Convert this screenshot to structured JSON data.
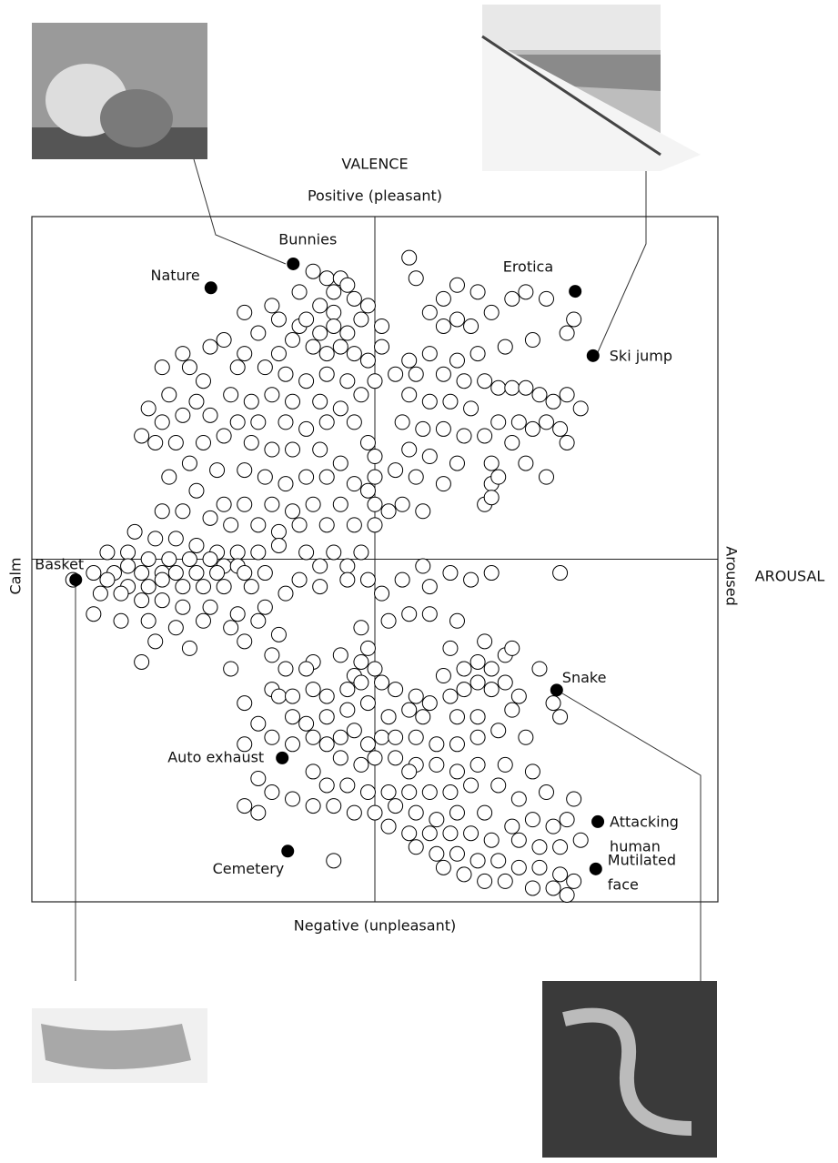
{
  "chart_data": {
    "type": "scatter",
    "xlabel": "AROUSAL",
    "x_low_label": "Calm",
    "x_high_label": "Aroused",
    "ylabel": "VALENCE",
    "y_high_label": "Positive (pleasant)",
    "y_low_label": "Negative (unpleasant)",
    "xlim": [
      0,
      100
    ],
    "ylim": [
      0,
      100
    ],
    "color": "#ffffff",
    "edge_color": "#000000",
    "highlight_color": "#000000",
    "x": [
      41,
      43,
      45,
      46,
      44,
      39,
      42,
      47,
      49,
      55,
      44,
      35,
      31,
      36,
      39,
      40,
      42,
      44,
      46,
      48,
      38,
      41,
      43,
      45,
      47,
      49,
      51,
      51,
      33,
      36,
      31,
      28,
      26,
      22,
      19,
      23,
      25,
      30,
      34,
      37,
      40,
      43,
      46,
      48,
      50,
      29,
      32,
      35,
      38,
      42,
      45,
      24,
      20,
      17,
      19,
      22,
      26,
      30,
      33,
      37,
      40,
      43,
      47,
      49,
      16,
      18,
      21,
      25,
      28,
      32,
      35,
      38,
      42,
      45,
      50,
      23,
      27,
      31,
      34,
      37,
      40,
      43,
      47,
      50,
      20,
      24,
      28,
      31,
      35,
      38,
      41,
      45,
      49,
      19,
      22,
      26,
      29,
      33,
      36,
      39,
      43,
      47,
      50,
      15,
      18,
      21,
      24,
      27,
      30,
      33,
      36,
      40,
      44,
      48,
      11,
      14,
      17,
      20,
      23,
      26,
      28,
      30,
      42,
      46,
      9,
      12,
      14,
      16,
      19,
      21,
      24,
      27,
      31,
      34,
      39,
      46,
      49,
      57,
      61,
      54,
      64,
      67,
      77,
      11,
      14,
      17,
      19,
      22,
      25,
      28,
      32,
      37,
      42,
      51,
      58,
      6,
      10,
      13,
      16,
      19,
      22,
      26,
      30,
      34,
      9,
      13,
      17,
      21,
      25,
      29,
      33,
      36,
      18,
      23,
      31,
      48,
      52,
      55,
      58,
      62,
      16,
      49,
      48,
      50,
      47,
      45,
      41,
      40,
      37,
      35,
      29,
      35,
      36,
      38,
      41,
      43,
      46,
      48,
      51,
      53,
      56,
      58,
      61,
      63,
      65,
      67,
      69,
      71,
      60,
      63,
      65,
      67,
      69,
      61,
      66,
      70,
      74,
      76,
      77,
      70,
      65,
      62,
      57,
      55,
      52,
      49,
      46,
      43,
      40,
      38,
      31,
      31,
      33,
      35,
      38,
      41,
      43,
      45,
      47,
      49,
      51,
      53,
      56,
      59,
      62,
      65,
      68,
      72,
      45,
      48,
      50,
      53,
      56,
      59,
      62,
      65,
      69,
      73,
      41,
      43,
      46,
      49,
      52,
      55,
      58,
      61,
      64,
      68,
      71,
      75,
      79,
      33,
      35,
      31,
      33,
      38,
      41,
      44,
      47,
      50,
      53,
      56,
      59,
      62,
      66,
      70,
      73,
      76,
      78,
      55,
      52,
      55,
      58,
      61,
      64,
      67,
      71,
      74,
      77,
      80,
      56,
      59,
      62,
      65,
      68,
      71,
      74,
      77,
      79,
      60,
      63,
      66,
      69,
      73,
      76,
      78,
      44,
      56,
      60,
      62,
      65,
      58,
      60,
      62,
      64,
      67,
      70,
      72,
      75,
      79,
      78,
      73,
      69,
      65,
      62,
      58,
      55,
      53,
      56,
      60,
      63,
      66,
      68,
      70,
      72,
      74,
      76,
      78,
      80,
      55,
      58,
      61,
      64,
      68,
      71,
      73,
      75,
      77,
      54,
      57,
      60,
      63,
      66,
      70,
      78,
      55,
      58,
      62,
      67,
      72,
      75,
      53,
      56,
      60,
      67,
      68,
      66,
      67,
      54,
      57,
      52,
      50
    ],
    "values": [
      92,
      91,
      91,
      90,
      89,
      89,
      87,
      88,
      87,
      94,
      86,
      87,
      86,
      85,
      84,
      85,
      83,
      84,
      83,
      85,
      82,
      81,
      80,
      81,
      80,
      79,
      84,
      81,
      83,
      80,
      80,
      82,
      81,
      80,
      78,
      78,
      76,
      78,
      78,
      77,
      76,
      77,
      76,
      74,
      76,
      74,
      73,
      74,
      73,
      73,
      72,
      73,
      74,
      72,
      70,
      71,
      71,
      70,
      70,
      70,
      69,
      70,
      70,
      67,
      68,
      67,
      67,
      67,
      68,
      67,
      66,
      66,
      66,
      64,
      65,
      64,
      63,
      63,
      62,
      61,
      62,
      62,
      61,
      62,
      62,
      60,
      58,
      58,
      58,
      57,
      58,
      58,
      60,
      57,
      57,
      56,
      55,
      55,
      54,
      55,
      55,
      55,
      55,
      54,
      53,
      53,
      52,
      51,
      51,
      51,
      52,
      51,
      51,
      51,
      51,
      51,
      50,
      50,
      50,
      50,
      49,
      49,
      49,
      49,
      48,
      48,
      49,
      48,
      48,
      48,
      48,
      48,
      48,
      48,
      47,
      47,
      47,
      49,
      48,
      47,
      47,
      48,
      48,
      47,
      46,
      46,
      47,
      46,
      46,
      46,
      46,
      45,
      46,
      45,
      46,
      47,
      45,
      45,
      44,
      44,
      43,
      43,
      42,
      43,
      42,
      41,
      41,
      40,
      41,
      40,
      41,
      39,
      38,
      37,
      38,
      40,
      41,
      42,
      42,
      41,
      35,
      37,
      35,
      34,
      33,
      36,
      35,
      34,
      34,
      36,
      34,
      31,
      30,
      30,
      31,
      30,
      31,
      32,
      32,
      31,
      30,
      29,
      30,
      31,
      32,
      31,
      32,
      30,
      33,
      34,
      35,
      34,
      36,
      37,
      38,
      37,
      34,
      29,
      27,
      28,
      27,
      27,
      27,
      28,
      27,
      29,
      28,
      27,
      26,
      27,
      29,
      23,
      26,
      24,
      23,
      24,
      23,
      24,
      25,
      23,
      24,
      24,
      24,
      23,
      23,
      24,
      25,
      24,
      21,
      20,
      21,
      21,
      20,
      20,
      19,
      20,
      20,
      19,
      19,
      17,
      17,
      16,
      16,
      16,
      16,
      16,
      17,
      17,
      15,
      16,
      15,
      18,
      16,
      14,
      13,
      15,
      14,
      14,
      13,
      13,
      14,
      13,
      12,
      13,
      13,
      11,
      12,
      11,
      12,
      19,
      11,
      10,
      10,
      10,
      10,
      9,
      9,
      8,
      8,
      9,
      8,
      7,
      7,
      6,
      6,
      5,
      5,
      4,
      3,
      5,
      4,
      3,
      3,
      2,
      2,
      1,
      6,
      91,
      88,
      90,
      89,
      86,
      84,
      85,
      84,
      86,
      88,
      89,
      88,
      85,
      83,
      82,
      81,
      80,
      79,
      80,
      79,
      77,
      77,
      77,
      76,
      76,
      75,
      75,
      75,
      74,
      73,
      74,
      72,
      74,
      73,
      73,
      72,
      70,
      70,
      69,
      70,
      69,
      70,
      69,
      69,
      68,
      68,
      67,
      67,
      66,
      65,
      64,
      64,
      64,
      62,
      63,
      62,
      61,
      61,
      62,
      58,
      59,
      58,
      57,
      57,
      58
    ],
    "labeled_points": [
      {
        "label": [
          "Bunnies"
        ],
        "x": 38.1,
        "y": 93.1
      },
      {
        "label": [
          "Nature"
        ],
        "x": 26.1,
        "y": 89.6
      },
      {
        "label": [
          "Erotica"
        ],
        "x": 79.2,
        "y": 89.1
      },
      {
        "label": [
          "Ski jump"
        ],
        "x": 81.8,
        "y": 79.7
      },
      {
        "label": [
          "Basket"
        ],
        "x": 6.4,
        "y": 47.0
      },
      {
        "label": [
          "Snake"
        ],
        "x": 76.5,
        "y": 30.9
      },
      {
        "label": [
          "Auto exhaust"
        ],
        "x": 36.5,
        "y": 21.0
      },
      {
        "label": [
          "Cemetery"
        ],
        "x": 37.3,
        "y": 7.4
      },
      {
        "label": [
          "Attacking",
          "human"
        ],
        "x": 82.5,
        "y": 11.7
      },
      {
        "label": [
          "Mutilated",
          "face"
        ],
        "x": 82.2,
        "y": 4.8
      }
    ]
  }
}
